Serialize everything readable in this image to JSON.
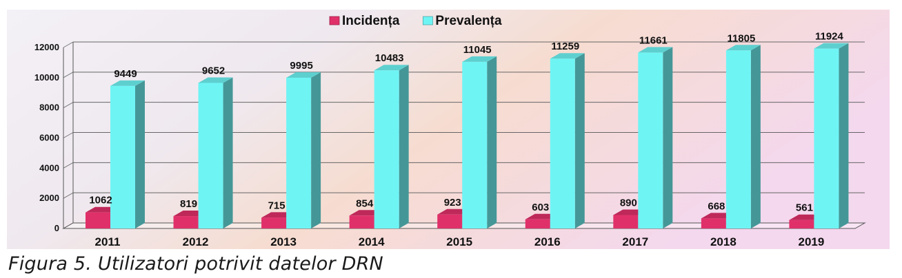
{
  "caption": "Figura 5. Utilizatori potrivit datelor DRN",
  "chart_data": {
    "type": "bar",
    "categories": [
      "2011",
      "2012",
      "2013",
      "2014",
      "2015",
      "2016",
      "2017",
      "2018",
      "2019"
    ],
    "series": [
      {
        "name": "Incidența",
        "values": [
          1062,
          819,
          715,
          854,
          923,
          603,
          890,
          668,
          561
        ],
        "color": "#e0306a"
      },
      {
        "name": "Prevalența",
        "values": [
          9449,
          9652,
          9995,
          10483,
          11045,
          11259,
          11661,
          11805,
          11924
        ],
        "color": "#6ff4f4"
      }
    ],
    "ylim": [
      0,
      12000
    ],
    "yticks": [
      "0",
      "2000",
      "4000",
      "6000",
      "8000",
      "10000",
      "12000"
    ],
    "grid": true,
    "legend": "top-center",
    "three_d": true
  }
}
